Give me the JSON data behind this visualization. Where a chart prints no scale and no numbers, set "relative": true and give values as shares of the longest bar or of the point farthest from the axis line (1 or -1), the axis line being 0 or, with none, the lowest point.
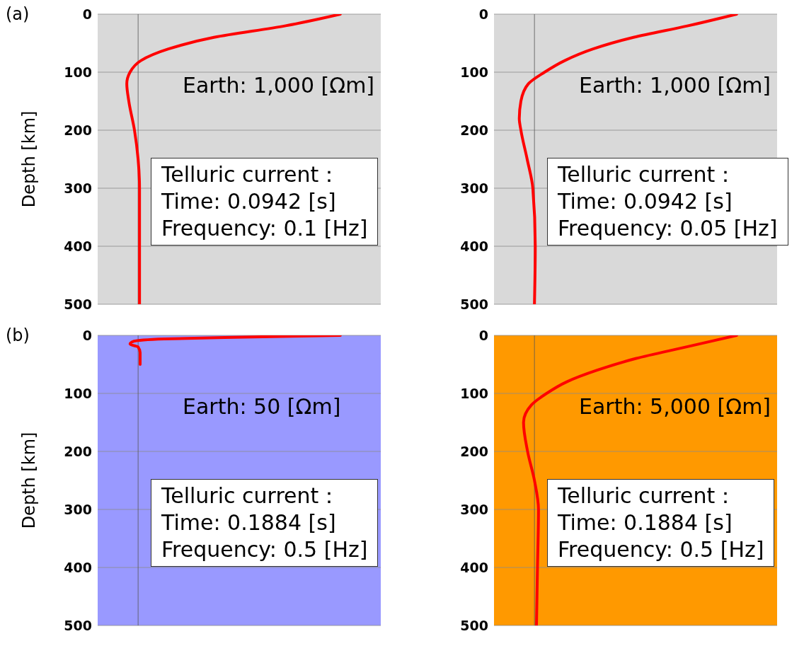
{
  "chart_data": [
    {
      "type": "line",
      "title": "(a)",
      "ylabel": "Depth [km]",
      "orientation": "horizontal",
      "relative": true,
      "ylim": [
        500,
        0
      ],
      "yticks": [
        0,
        100,
        200,
        300,
        400,
        500
      ],
      "grid": "y",
      "tick_labels": "y",
      "bands": [
        {
          "axis": "y",
          "from": 0,
          "to": 500,
          "color": "#d9d9d9"
        }
      ],
      "series": [
        {
          "color": "#ff0000",
          "x": [
            0,
            20,
            40,
            60,
            80,
            100,
            120,
            150,
            200,
            250,
            300,
            400,
            500
          ],
          "values": [
            1,
            0.73,
            0.375,
            0.15,
            0.014,
            -0.04,
            -0.056,
            -0.046,
            -0.018,
            0,
            0.007,
            0.007,
            0.007
          ]
        }
      ],
      "annotations": [
        "Earth: 1,000 [Ωm]",
        "Telluric current：",
        "Time: 0.0942 [s]",
        "Frequency: 0.1 [Hz]"
      ]
    },
    {
      "type": "line",
      "orientation": "horizontal",
      "relative": true,
      "ylim": [
        500,
        0
      ],
      "yticks": [
        0,
        100,
        200,
        300,
        400,
        500
      ],
      "grid": "y",
      "tick_labels": "y",
      "bands": [
        {
          "axis": "y",
          "from": 0,
          "to": 500,
          "color": "#d9d9d9"
        }
      ],
      "series": [
        {
          "color": "#ff0000",
          "x": [
            0,
            20,
            40,
            60,
            80,
            100,
            120,
            150,
            180,
            200,
            250,
            300,
            400,
            500
          ],
          "values": [
            1,
            0.76,
            0.49,
            0.29,
            0.15,
            0.05,
            -0.03,
            -0.067,
            -0.075,
            -0.067,
            -0.036,
            -0.008,
            0.004,
            0
          ]
        }
      ],
      "annotations": [
        "Earth: 1,000 [Ωm]",
        "Telluric current：",
        "Time: 0.0942 [s]",
        "Frequency: 0.05 [Hz]"
      ]
    },
    {
      "type": "line",
      "title": "(b)",
      "ylabel": "Depth [km]",
      "orientation": "horizontal",
      "relative": true,
      "ylim": [
        500,
        0
      ],
      "yticks": [
        0,
        100,
        200,
        300,
        400,
        500
      ],
      "grid": "y",
      "tick_labels": "y",
      "bands": [
        {
          "axis": "y",
          "from": 0,
          "to": 500,
          "color": "#9999ff"
        }
      ],
      "series": [
        {
          "color": "#ff0000",
          "x": [
            0,
            3,
            6,
            10,
            15,
            20,
            30,
            40,
            50
          ],
          "values": [
            1,
            0.52,
            0.13,
            -0.02,
            -0.04,
            0,
            0.01,
            0.01,
            0.01
          ]
        }
      ],
      "annotations": [
        "Earth: 50 [Ωm]",
        "Telluric current：",
        "Time: 0.1884 [s]",
        "Frequency: 0.5 [Hz]"
      ]
    },
    {
      "type": "line",
      "orientation": "horizontal",
      "relative": true,
      "ylim": [
        500,
        0
      ],
      "yticks": [
        0,
        100,
        200,
        300,
        400,
        500
      ],
      "grid": "y",
      "tick_labels": "y",
      "bands": [
        {
          "axis": "y",
          "from": 0,
          "to": 500,
          "color": "#ff9900"
        }
      ],
      "series": [
        {
          "color": "#ff0000",
          "x": [
            0,
            20,
            40,
            60,
            80,
            100,
            120,
            150,
            200,
            250,
            300,
            400,
            500
          ],
          "values": [
            1,
            0.75,
            0.5,
            0.31,
            0.16,
            0.06,
            -0.015,
            -0.054,
            -0.034,
            0,
            0.02,
            0.015,
            0.01
          ]
        }
      ],
      "annotations": [
        "Earth: 5,000 [Ωm]",
        "Telluric current：",
        "Time: 0.1884 [s]",
        "Frequency: 0.5 [Hz]"
      ]
    }
  ]
}
